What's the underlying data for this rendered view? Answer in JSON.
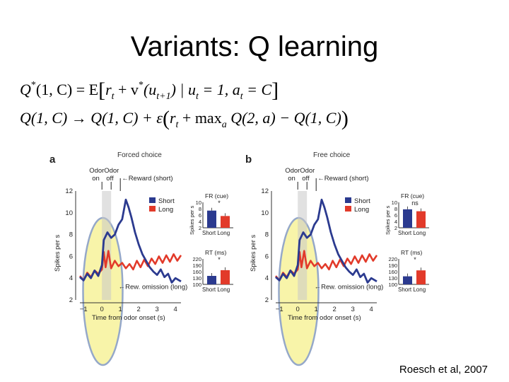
{
  "slide": {
    "title": "Variants: Q learning",
    "citation": "Roesch et al, 2007"
  },
  "equations": {
    "eq1": {
      "lhs": "Q",
      "lhs_star": "*",
      "lhs_args": "(1, C) = E",
      "r": "r",
      "r_sub": "t",
      "plus_v": "+ v",
      "v_star": "*",
      "u_paren": "(u",
      "u_sub": "t+1",
      "cond": ") | u",
      "cond_sub1": "t",
      "cond_mid": " = 1, a",
      "cond_sub2": "t",
      "cond_end": " = C"
    },
    "eq2": {
      "part1": "Q(1, C) → Q(1, C) + ε",
      "r": "r",
      "r_sub": "t",
      "max": " + max",
      "max_sub": "a",
      "part2": " Q(2, a) − Q(1, C)"
    }
  },
  "panels": [
    {
      "letter": "a",
      "header": "Forced choice",
      "odor_on": [
        "Odor",
        "on"
      ],
      "odor_off": [
        "Odor",
        "off"
      ],
      "reward_label": "←Reward (short)",
      "omission_label": "←Rew. omission (long)",
      "ylabel": "Spikes per s",
      "xlabel": "Time from odor onset (s)",
      "legend": [
        "Short",
        "Long"
      ],
      "fr_title": "FR (cue)",
      "fr_mark": "*",
      "rt_title": "RT (ms)",
      "rt_mark": "*",
      "inset_cats": "Short Long",
      "fr_ylabel": "Spikes per s",
      "fr_ticks": [
        "10",
        "8",
        "6",
        "4",
        "2"
      ],
      "rt_ticks": [
        "220",
        "190",
        "160",
        "130",
        "100"
      ],
      "fr_values": [
        7.4,
        5.7
      ],
      "rt_values": [
        140,
        167
      ]
    },
    {
      "letter": "b",
      "header": "Free choice",
      "odor_on": [
        "Odor",
        "on"
      ],
      "odor_off": [
        "Odor",
        "off"
      ],
      "reward_label": "←Reward (short)",
      "omission_label": "←Rew. omission (long)",
      "ylabel": "Spikes per s",
      "xlabel": "Time from odor onset (s)",
      "legend": [
        "Short",
        "Long"
      ],
      "fr_title": "FR (cue)",
      "fr_mark": "ns",
      "rt_title": "RT (ms)",
      "rt_mark": "*",
      "inset_cats": "Short Long",
      "fr_ylabel": "Spikes per s",
      "fr_ticks": [
        "10",
        "8",
        "6",
        "4",
        "2"
      ],
      "rt_ticks": [
        "220",
        "190",
        "160",
        "130",
        "100"
      ],
      "fr_values": [
        7.8,
        7.2
      ],
      "rt_values": [
        138,
        166
      ]
    }
  ],
  "plot_axis": {
    "yticks": [
      "12",
      "10",
      "8",
      "6",
      "4",
      "2"
    ],
    "xticks": [
      "−1",
      "0",
      "1",
      "2",
      "3",
      "4"
    ],
    "ylim": [
      2,
      12
    ],
    "xlim": [
      -1.2,
      4.3
    ]
  },
  "colors": {
    "short": "#2b3a8f",
    "long": "#e23a2a",
    "highlight_fill": "#f8f3a0",
    "highlight_stroke": "#8a9fc4",
    "band": "#c8c8c8"
  }
}
